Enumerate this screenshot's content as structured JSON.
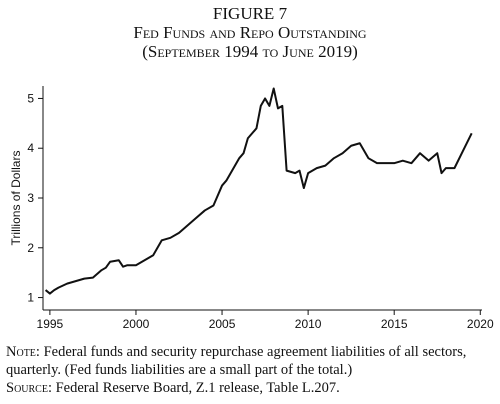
{
  "chart_data": {
    "type": "line",
    "figure": "FIGURE 7",
    "title": "Fed Funds and Repo Outstanding",
    "subtitle": "(September 1994 to June 2019)",
    "ylabel": "Trillions of Dollars",
    "x": [
      1994.75,
      1995,
      1995.25,
      1995.5,
      1996,
      1996.5,
      1997,
      1997.5,
      1998,
      1998.25,
      1998.5,
      1999,
      1999.25,
      1999.5,
      2000,
      2000.5,
      2001,
      2001.5,
      2002,
      2002.5,
      2003,
      2003.5,
      2004,
      2004.5,
      2005,
      2005.25,
      2005.5,
      2006,
      2006.25,
      2006.5,
      2007,
      2007.25,
      2007.5,
      2007.75,
      2008,
      2008.25,
      2008.5,
      2008.75,
      2009.25,
      2009.5,
      2009.75,
      2010,
      2010.5,
      2011,
      2011.5,
      2012,
      2012.5,
      2013,
      2013.5,
      2014,
      2014.5,
      2015,
      2015.5,
      2016,
      2016.5,
      2017,
      2017.5,
      2017.75,
      2018,
      2018.5,
      2019,
      2019.5
    ],
    "series": [
      {
        "name": "Fed funds and repo",
        "color": "#111111",
        "values": [
          1.15,
          1.08,
          1.15,
          1.2,
          1.28,
          1.33,
          1.38,
          1.4,
          1.55,
          1.6,
          1.72,
          1.75,
          1.62,
          1.65,
          1.65,
          1.75,
          1.85,
          2.15,
          2.2,
          2.3,
          2.45,
          2.6,
          2.75,
          2.85,
          3.25,
          3.35,
          3.5,
          3.8,
          3.9,
          4.2,
          4.4,
          4.85,
          5.0,
          4.85,
          5.2,
          4.8,
          4.85,
          3.55,
          3.5,
          3.55,
          3.2,
          3.5,
          3.6,
          3.65,
          3.8,
          3.9,
          4.05,
          4.1,
          3.8,
          3.7,
          3.7,
          3.7,
          3.75,
          3.7,
          3.9,
          3.75,
          3.9,
          3.5,
          3.6,
          3.6,
          3.95,
          4.3
        ]
      }
    ],
    "xlim": [
      1994.6,
      2020.1
    ],
    "xticks": [
      1995,
      2000,
      2005,
      2010,
      2015,
      2020
    ],
    "ylim": [
      0.75,
      5.25
    ],
    "yticks": [
      1,
      2,
      3,
      4,
      5
    ],
    "note_label": "Note:",
    "note": "Federal funds and security repurchase agreement liabilities of all sectors, quarterly. (Fed funds liabilities are a small part of the total.)",
    "source_label": "Source:",
    "source": "Federal Reserve Board, Z.1 release, Table L.207."
  }
}
